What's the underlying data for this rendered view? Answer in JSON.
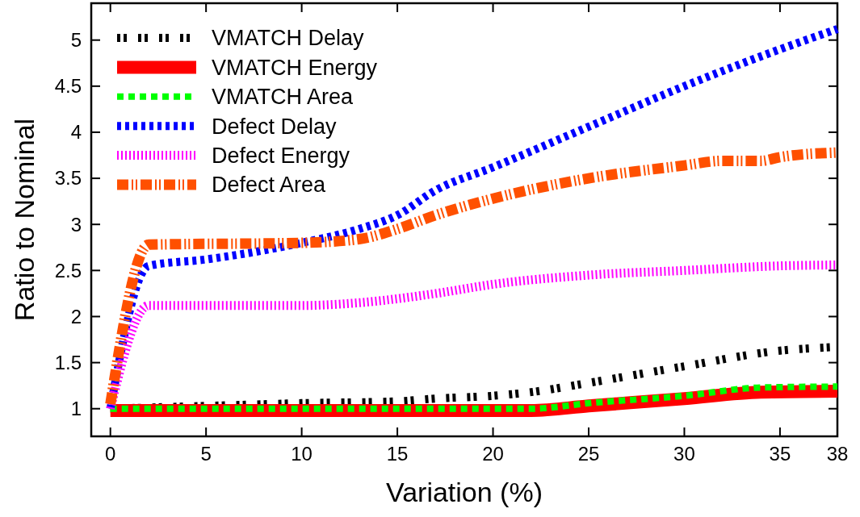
{
  "chart_data": {
    "type": "line",
    "xlabel": "Variation (%)",
    "ylabel": "Ratio to Nominal",
    "xlim": [
      -1,
      38
    ],
    "ylim": [
      0.7,
      5.4
    ],
    "xticks": [
      0,
      5,
      10,
      15,
      20,
      25,
      30,
      35,
      38
    ],
    "yticks": [
      1,
      1.5,
      2,
      2.5,
      3,
      3.5,
      4,
      4.5,
      5
    ],
    "grid": false,
    "legend": "top left",
    "series": [
      {
        "name": "VMATCH Delay",
        "color": "#000000",
        "line_style": "dashed",
        "x": [
          0,
          5,
          10,
          15,
          17,
          20,
          22,
          25,
          30,
          35,
          38
        ],
        "values": [
          1.0,
          1.03,
          1.06,
          1.08,
          1.11,
          1.14,
          1.18,
          1.28,
          1.46,
          1.63,
          1.67
        ]
      },
      {
        "name": "VMATCH Energy",
        "color": "#ff0000",
        "line_style": "solid",
        "x": [
          0,
          22,
          25,
          30,
          34,
          38
        ],
        "values": [
          0.98,
          0.98,
          1.03,
          1.11,
          1.18,
          1.19
        ]
      },
      {
        "name": "VMATCH Area",
        "color": "#00ff00",
        "line_style": "dotted",
        "x": [
          0,
          22,
          25,
          30,
          34,
          38
        ],
        "values": [
          1.0,
          1.0,
          1.06,
          1.14,
          1.23,
          1.24
        ]
      },
      {
        "name": "Defect Delay",
        "color": "#0000ff",
        "line_style": "dotted",
        "x": [
          0,
          2,
          5,
          10,
          13,
          15,
          17,
          20,
          25,
          30,
          35,
          38
        ],
        "values": [
          1.0,
          2.55,
          2.62,
          2.8,
          2.95,
          3.1,
          3.37,
          3.62,
          4.06,
          4.5,
          4.9,
          5.12
        ]
      },
      {
        "name": "Defect Energy",
        "color": "#ff00ff",
        "line_style": "dotted",
        "x": [
          0,
          2,
          10,
          13,
          17,
          20,
          25,
          30,
          35,
          38
        ],
        "values": [
          1.0,
          2.12,
          2.12,
          2.15,
          2.25,
          2.35,
          2.45,
          2.5,
          2.55,
          2.56
        ]
      },
      {
        "name": "Defect Area",
        "color": "#ff5000",
        "line_style": "dashed",
        "x": [
          0,
          2,
          10,
          13,
          15,
          17,
          20,
          25,
          30,
          32,
          34,
          35,
          38
        ],
        "values": [
          1.05,
          2.78,
          2.8,
          2.84,
          2.95,
          3.1,
          3.28,
          3.5,
          3.64,
          3.69,
          3.69,
          3.73,
          3.78
        ]
      }
    ]
  }
}
